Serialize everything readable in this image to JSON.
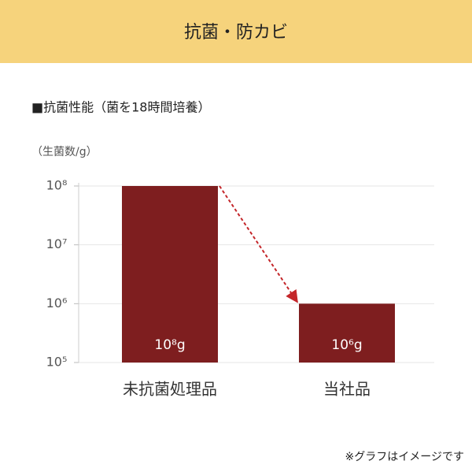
{
  "header": {
    "title": "抗菌・防カビ"
  },
  "chart_data": {
    "type": "bar",
    "title": "■抗菌性能（菌を18時間培養）",
    "y_label": "（生菌数/g）",
    "categories": [
      "未抗菌処理品",
      "当社品"
    ],
    "values": [
      100000000,
      1000000
    ],
    "value_labels": [
      "10⁸g",
      "10⁶g"
    ],
    "color": "#7e1e1f",
    "log_scale": true,
    "ylim": [
      100000,
      100000000
    ],
    "yticks": [
      {
        "value": 100000,
        "label": "10⁵"
      },
      {
        "value": 1000000,
        "label": "10⁶"
      },
      {
        "value": 10000000,
        "label": "10⁷"
      },
      {
        "value": 100000000,
        "label": "10⁸"
      }
    ],
    "grid": true
  },
  "footnote": "※グラフはイメージです"
}
